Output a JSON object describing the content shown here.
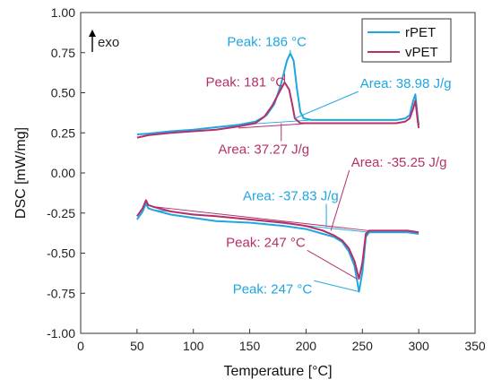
{
  "chart_data": {
    "type": "line",
    "title": "",
    "xlabel": "Temperature [°C]",
    "ylabel": "DSC [mW/mg]",
    "xlim": [
      0,
      350
    ],
    "ylim": [
      -1.0,
      1.0
    ],
    "xticks": [
      "0",
      "50",
      "100",
      "150",
      "200",
      "250",
      "300",
      "350"
    ],
    "yticks": [
      "1.00",
      "0.75",
      "0.50",
      "0.25",
      "0.00",
      "-0.25",
      "-0.50",
      "-0.75",
      "-1.00"
    ],
    "exo_label": "exo",
    "legend_position": "top-right",
    "grid": false,
    "series": [
      {
        "name": "rPET",
        "color": "#1fa6e0",
        "heating": [
          [
            50,
            0.24
          ],
          [
            60,
            0.245
          ],
          [
            80,
            0.26
          ],
          [
            100,
            0.27
          ],
          [
            120,
            0.285
          ],
          [
            140,
            0.3
          ],
          [
            155,
            0.32
          ],
          [
            165,
            0.36
          ],
          [
            172,
            0.43
          ],
          [
            178,
            0.56
          ],
          [
            183,
            0.7
          ],
          [
            186,
            0.745
          ],
          [
            189,
            0.7
          ],
          [
            192,
            0.52
          ],
          [
            195,
            0.38
          ],
          [
            198,
            0.34
          ],
          [
            205,
            0.33
          ],
          [
            230,
            0.33
          ],
          [
            260,
            0.33
          ],
          [
            280,
            0.33
          ],
          [
            288,
            0.34
          ],
          [
            292,
            0.36
          ],
          [
            295,
            0.45
          ],
          [
            297,
            0.49
          ],
          [
            299,
            0.35
          ],
          [
            300,
            0.3
          ]
        ],
        "cooling": [
          [
            50,
            -0.29
          ],
          [
            55,
            -0.24
          ],
          [
            58,
            -0.19
          ],
          [
            60,
            -0.22
          ],
          [
            64,
            -0.23
          ],
          [
            80,
            -0.26
          ],
          [
            100,
            -0.28
          ],
          [
            120,
            -0.3
          ],
          [
            150,
            -0.31
          ],
          [
            180,
            -0.33
          ],
          [
            200,
            -0.35
          ],
          [
            215,
            -0.38
          ],
          [
            225,
            -0.4
          ],
          [
            232,
            -0.43
          ],
          [
            238,
            -0.49
          ],
          [
            243,
            -0.58
          ],
          [
            247,
            -0.74
          ],
          [
            250,
            -0.62
          ],
          [
            253,
            -0.4
          ],
          [
            256,
            -0.37
          ],
          [
            270,
            -0.37
          ],
          [
            290,
            -0.37
          ],
          [
            300,
            -0.38
          ]
        ]
      },
      {
        "name": "vPET",
        "color": "#b5306a",
        "heating": [
          [
            50,
            0.22
          ],
          [
            60,
            0.235
          ],
          [
            80,
            0.25
          ],
          [
            100,
            0.26
          ],
          [
            120,
            0.27
          ],
          [
            140,
            0.29
          ],
          [
            155,
            0.31
          ],
          [
            163,
            0.35
          ],
          [
            170,
            0.42
          ],
          [
            176,
            0.5
          ],
          [
            181,
            0.565
          ],
          [
            185,
            0.52
          ],
          [
            188,
            0.42
          ],
          [
            190,
            0.34
          ],
          [
            195,
            0.31
          ],
          [
            205,
            0.31
          ],
          [
            230,
            0.31
          ],
          [
            260,
            0.31
          ],
          [
            280,
            0.31
          ],
          [
            288,
            0.32
          ],
          [
            292,
            0.34
          ],
          [
            295,
            0.4
          ],
          [
            297,
            0.45
          ],
          [
            299,
            0.33
          ],
          [
            300,
            0.28
          ]
        ],
        "cooling": [
          [
            50,
            -0.27
          ],
          [
            55,
            -0.22
          ],
          [
            58,
            -0.17
          ],
          [
            60,
            -0.2
          ],
          [
            64,
            -0.21
          ],
          [
            80,
            -0.24
          ],
          [
            100,
            -0.26
          ],
          [
            120,
            -0.27
          ],
          [
            150,
            -0.29
          ],
          [
            180,
            -0.31
          ],
          [
            200,
            -0.33
          ],
          [
            215,
            -0.36
          ],
          [
            225,
            -0.39
          ],
          [
            232,
            -0.42
          ],
          [
            238,
            -0.47
          ],
          [
            243,
            -0.55
          ],
          [
            247,
            -0.66
          ],
          [
            250,
            -0.56
          ],
          [
            253,
            -0.38
          ],
          [
            256,
            -0.36
          ],
          [
            270,
            -0.36
          ],
          [
            290,
            -0.36
          ],
          [
            300,
            -0.37
          ]
        ]
      }
    ],
    "baselines": [
      {
        "series": "rPET",
        "from": [
          140,
          0.3
        ],
        "to": [
          205,
          0.33
        ]
      },
      {
        "series": "vPET",
        "from": [
          140,
          0.28
        ],
        "to": [
          205,
          0.31
        ]
      },
      {
        "series": "rPET",
        "from": [
          64,
          -0.23
        ],
        "to": [
          256,
          -0.37
        ]
      },
      {
        "series": "vPET",
        "from": [
          64,
          -0.21
        ],
        "to": [
          256,
          -0.36
        ]
      }
    ],
    "annotations": [
      {
        "text": "Peak: 186 °C",
        "series": "rPET",
        "label_at": [
          130,
          0.79
        ],
        "point": [
          186,
          0.745
        ]
      },
      {
        "text": "Peak: 181 °C",
        "series": "vPET",
        "label_at": [
          111,
          0.54
        ],
        "point": [
          181,
          0.565
        ]
      },
      {
        "text": "Area: 38.98 J/g",
        "series": "rPET",
        "label_at": [
          248,
          0.53
        ],
        "point": [
          190,
          0.34
        ]
      },
      {
        "text": "Area: 37.27 J/g",
        "series": "vPET",
        "label_at": [
          122,
          0.12
        ],
        "point": [
          178,
          0.31
        ]
      },
      {
        "text": "Area: -35.25 J/g",
        "series": "vPET",
        "label_at": [
          240,
          0.04
        ],
        "point": [
          222,
          -0.36
        ]
      },
      {
        "text": "Area: -37.83 J/g",
        "series": "rPET",
        "label_at": [
          144,
          -0.17
        ],
        "point": [
          218,
          -0.34
        ]
      },
      {
        "text": "Peak: 247 °C",
        "series": "vPET",
        "label_at": [
          129,
          -0.46
        ],
        "point": [
          245,
          -0.66
        ]
      },
      {
        "text": "Peak: 247 °C",
        "series": "rPET",
        "label_at": [
          135,
          -0.75
        ],
        "point": [
          247,
          -0.74
        ]
      }
    ]
  }
}
